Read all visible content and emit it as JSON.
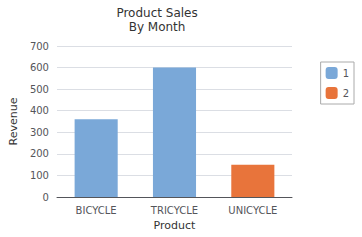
{
  "chart_data": {
    "type": "bar",
    "title": "Product Sales",
    "subtitle": "By Month",
    "categories": [
      "BICYCLE",
      "TRICYCLE",
      "UNICYCLE"
    ],
    "series": [
      {
        "name": "1",
        "color": "#7aa8d8",
        "values": [
          360,
          600,
          null
        ]
      },
      {
        "name": "2",
        "color": "#e8743b",
        "values": [
          null,
          null,
          150
        ]
      }
    ],
    "stacked": true,
    "xlabel": "Product",
    "ylabel": "Revenue",
    "ylim": [
      0,
      700
    ],
    "yticks": [
      0,
      100,
      200,
      300,
      400,
      500,
      600,
      700
    ],
    "grid": true,
    "legend": "right"
  }
}
